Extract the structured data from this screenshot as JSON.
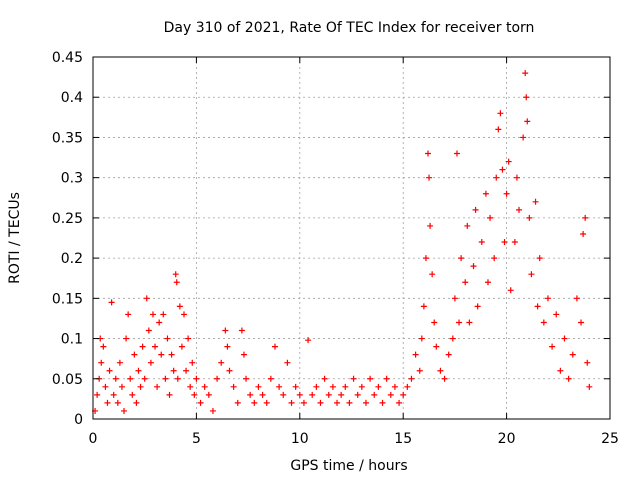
{
  "chart_data": {
    "type": "scatter",
    "title": "Day 310 of 2021, Rate Of TEC Index for receiver torn",
    "xlabel": "GPS time / hours",
    "ylabel": "ROTI / TECUs",
    "xlim": [
      0,
      25
    ],
    "ylim": [
      0,
      0.45
    ],
    "xticks": [
      0,
      5,
      10,
      15,
      20,
      25
    ],
    "xtick_labels": [
      "0",
      "5",
      "10",
      "15",
      "20",
      "25"
    ],
    "yticks": [
      0,
      0.05,
      0.1,
      0.15,
      0.2,
      0.25,
      0.3,
      0.35,
      0.4,
      0.45
    ],
    "ytick_labels": [
      "0",
      "0.05",
      "0.1",
      "0.15",
      "0.2",
      "0.25",
      "0.3",
      "0.35",
      "0.4",
      "0.45"
    ],
    "grid": true,
    "marker": "+",
    "series_color": "#ff0000",
    "series": [
      {
        "name": "ROTI",
        "points": [
          [
            0.1,
            0.01
          ],
          [
            0.2,
            0.03
          ],
          [
            0.3,
            0.05
          ],
          [
            0.35,
            0.1
          ],
          [
            0.4,
            0.07
          ],
          [
            0.5,
            0.09
          ],
          [
            0.6,
            0.04
          ],
          [
            0.7,
            0.02
          ],
          [
            0.8,
            0.06
          ],
          [
            0.9,
            0.145
          ],
          [
            1.0,
            0.03
          ],
          [
            1.1,
            0.05
          ],
          [
            1.2,
            0.02
          ],
          [
            1.3,
            0.07
          ],
          [
            1.4,
            0.04
          ],
          [
            1.5,
            0.01
          ],
          [
            1.6,
            0.1
          ],
          [
            1.7,
            0.13
          ],
          [
            1.8,
            0.05
          ],
          [
            1.9,
            0.03
          ],
          [
            2.0,
            0.08
          ],
          [
            2.1,
            0.02
          ],
          [
            2.2,
            0.06
          ],
          [
            2.3,
            0.04
          ],
          [
            2.4,
            0.09
          ],
          [
            2.5,
            0.05
          ],
          [
            2.6,
            0.15
          ],
          [
            2.7,
            0.11
          ],
          [
            2.8,
            0.07
          ],
          [
            2.9,
            0.13
          ],
          [
            3.0,
            0.09
          ],
          [
            3.1,
            0.04
          ],
          [
            3.2,
            0.12
          ],
          [
            3.3,
            0.08
          ],
          [
            3.4,
            0.13
          ],
          [
            3.5,
            0.05
          ],
          [
            3.6,
            0.1
          ],
          [
            3.7,
            0.03
          ],
          [
            3.8,
            0.08
          ],
          [
            3.9,
            0.06
          ],
          [
            4.0,
            0.18
          ],
          [
            4.05,
            0.17
          ],
          [
            4.1,
            0.05
          ],
          [
            4.2,
            0.14
          ],
          [
            4.3,
            0.09
          ],
          [
            4.4,
            0.13
          ],
          [
            4.5,
            0.06
          ],
          [
            4.6,
            0.1
          ],
          [
            4.7,
            0.04
          ],
          [
            4.8,
            0.07
          ],
          [
            4.9,
            0.03
          ],
          [
            5.0,
            0.05
          ],
          [
            5.2,
            0.02
          ],
          [
            5.4,
            0.04
          ],
          [
            5.6,
            0.03
          ],
          [
            5.8,
            0.01
          ],
          [
            6.0,
            0.05
          ],
          [
            6.2,
            0.07
          ],
          [
            6.4,
            0.11
          ],
          [
            6.5,
            0.09
          ],
          [
            6.6,
            0.06
          ],
          [
            6.8,
            0.04
          ],
          [
            7.0,
            0.02
          ],
          [
            7.2,
            0.11
          ],
          [
            7.3,
            0.08
          ],
          [
            7.4,
            0.05
          ],
          [
            7.6,
            0.03
          ],
          [
            7.8,
            0.02
          ],
          [
            8.0,
            0.04
          ],
          [
            8.2,
            0.03
          ],
          [
            8.4,
            0.02
          ],
          [
            8.6,
            0.05
          ],
          [
            8.8,
            0.09
          ],
          [
            9.0,
            0.04
          ],
          [
            9.2,
            0.03
          ],
          [
            9.4,
            0.07
          ],
          [
            9.6,
            0.02
          ],
          [
            9.8,
            0.04
          ],
          [
            10.0,
            0.03
          ],
          [
            10.2,
            0.02
          ],
          [
            10.4,
            0.098
          ],
          [
            10.6,
            0.03
          ],
          [
            10.8,
            0.04
          ],
          [
            11.0,
            0.02
          ],
          [
            11.2,
            0.05
          ],
          [
            11.4,
            0.03
          ],
          [
            11.6,
            0.04
          ],
          [
            11.8,
            0.02
          ],
          [
            12.0,
            0.03
          ],
          [
            12.2,
            0.04
          ],
          [
            12.4,
            0.02
          ],
          [
            12.6,
            0.05
          ],
          [
            12.8,
            0.03
          ],
          [
            13.0,
            0.04
          ],
          [
            13.2,
            0.02
          ],
          [
            13.4,
            0.05
          ],
          [
            13.6,
            0.03
          ],
          [
            13.8,
            0.04
          ],
          [
            14.0,
            0.02
          ],
          [
            14.2,
            0.05
          ],
          [
            14.4,
            0.03
          ],
          [
            14.6,
            0.04
          ],
          [
            14.8,
            0.02
          ],
          [
            15.0,
            0.03
          ],
          [
            15.2,
            0.04
          ],
          [
            15.4,
            0.05
          ],
          [
            15.6,
            0.08
          ],
          [
            15.8,
            0.06
          ],
          [
            15.9,
            0.1
          ],
          [
            16.0,
            0.14
          ],
          [
            16.1,
            0.2
          ],
          [
            16.2,
            0.33
          ],
          [
            16.25,
            0.3
          ],
          [
            16.3,
            0.24
          ],
          [
            16.4,
            0.18
          ],
          [
            16.5,
            0.12
          ],
          [
            16.6,
            0.09
          ],
          [
            16.8,
            0.06
          ],
          [
            17.0,
            0.05
          ],
          [
            17.2,
            0.08
          ],
          [
            17.4,
            0.1
          ],
          [
            17.5,
            0.15
          ],
          [
            17.6,
            0.33
          ],
          [
            17.7,
            0.12
          ],
          [
            17.8,
            0.2
          ],
          [
            18.0,
            0.17
          ],
          [
            18.1,
            0.24
          ],
          [
            18.2,
            0.12
          ],
          [
            18.4,
            0.19
          ],
          [
            18.5,
            0.26
          ],
          [
            18.6,
            0.14
          ],
          [
            18.8,
            0.22
          ],
          [
            19.0,
            0.28
          ],
          [
            19.1,
            0.17
          ],
          [
            19.2,
            0.25
          ],
          [
            19.4,
            0.2
          ],
          [
            19.5,
            0.3
          ],
          [
            19.6,
            0.36
          ],
          [
            19.7,
            0.38
          ],
          [
            19.8,
            0.31
          ],
          [
            19.9,
            0.22
          ],
          [
            20.0,
            0.28
          ],
          [
            20.1,
            0.32
          ],
          [
            20.2,
            0.16
          ],
          [
            20.4,
            0.22
          ],
          [
            20.5,
            0.3
          ],
          [
            20.6,
            0.26
          ],
          [
            20.8,
            0.35
          ],
          [
            20.9,
            0.43
          ],
          [
            20.95,
            0.4
          ],
          [
            21.0,
            0.37
          ],
          [
            21.1,
            0.25
          ],
          [
            21.2,
            0.18
          ],
          [
            21.4,
            0.27
          ],
          [
            21.5,
            0.14
          ],
          [
            21.6,
            0.2
          ],
          [
            21.8,
            0.12
          ],
          [
            22.0,
            0.15
          ],
          [
            22.2,
            0.09
          ],
          [
            22.4,
            0.13
          ],
          [
            22.6,
            0.06
          ],
          [
            22.8,
            0.1
          ],
          [
            23.0,
            0.05
          ],
          [
            23.2,
            0.08
          ],
          [
            23.4,
            0.15
          ],
          [
            23.6,
            0.12
          ],
          [
            23.7,
            0.23
          ],
          [
            23.8,
            0.25
          ],
          [
            23.9,
            0.07
          ],
          [
            24.0,
            0.04
          ]
        ]
      }
    ]
  }
}
